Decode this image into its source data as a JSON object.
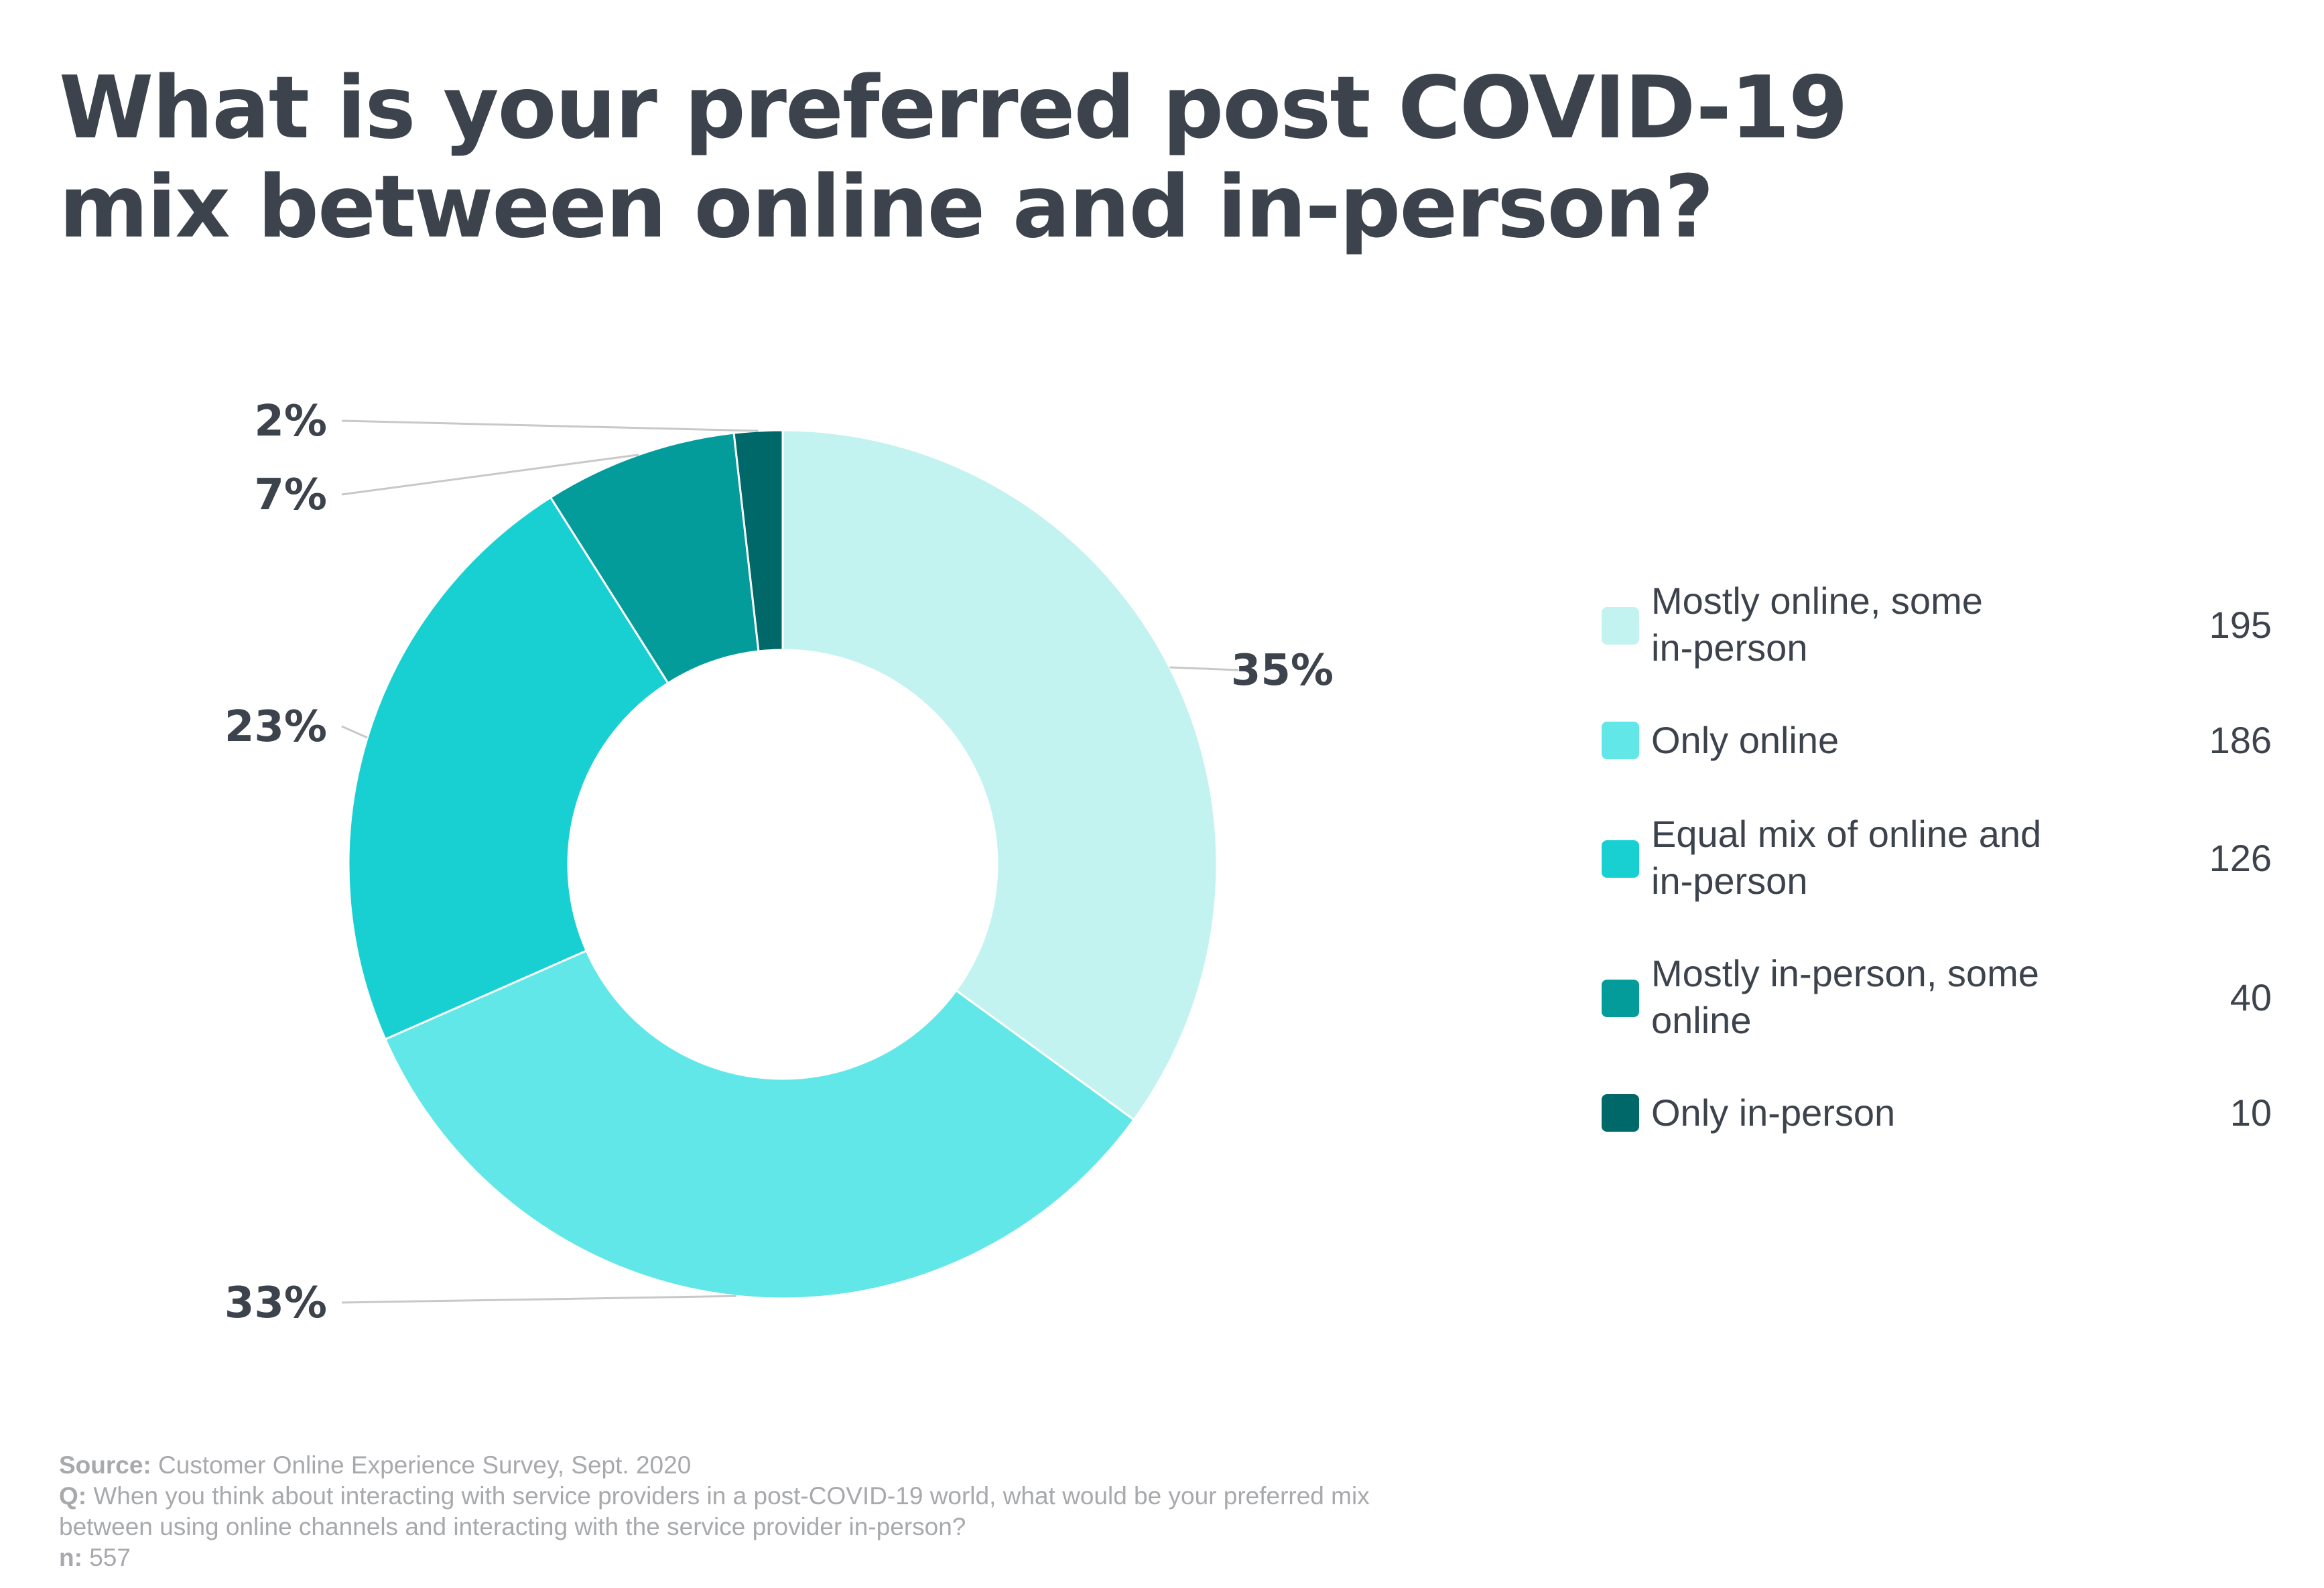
{
  "title_line1": "What is your preferred post COVID-19",
  "title_line2": "mix between online and in-person?",
  "chart_data": {
    "type": "pie",
    "donut": true,
    "categories": [
      "Mostly online, some in-person",
      "Only online",
      "Equal mix of online and in-person",
      "Mostly in-person, some online",
      "Only in-person"
    ],
    "values": [
      195,
      186,
      126,
      40,
      10
    ],
    "percent_labels": [
      "35%",
      "33%",
      "23%",
      "7%",
      "2%"
    ],
    "colors": [
      "#c3f3f1",
      "#62e7e9",
      "#18d0d2",
      "#039c9b",
      "#006868"
    ],
    "legend_placement": "right"
  },
  "legend": [
    {
      "label_line1": "Mostly online, some",
      "label_line2": "in-person",
      "value": "195"
    },
    {
      "label_line1": "Only online",
      "label_line2": "",
      "value": "186"
    },
    {
      "label_line1": "Equal mix of online and",
      "label_line2": "in-person",
      "value": "126"
    },
    {
      "label_line1": "Mostly in-person, some",
      "label_line2": "online",
      "value": "40"
    },
    {
      "label_line1": "Only in-person",
      "label_line2": "",
      "value": "10"
    }
  ],
  "footer": {
    "source_key": "Source:",
    "source_text": " Customer Online Experience Survey, Sept. 2020",
    "q_key": "Q:",
    "q_text_line1": " When you think about interacting with service providers in a post-COVID-19 world, what would be your preferred mix",
    "q_text_line2": "between using online channels and interacting with the service provider in-person?",
    "n_key": "n:",
    "n_text": " 557"
  }
}
